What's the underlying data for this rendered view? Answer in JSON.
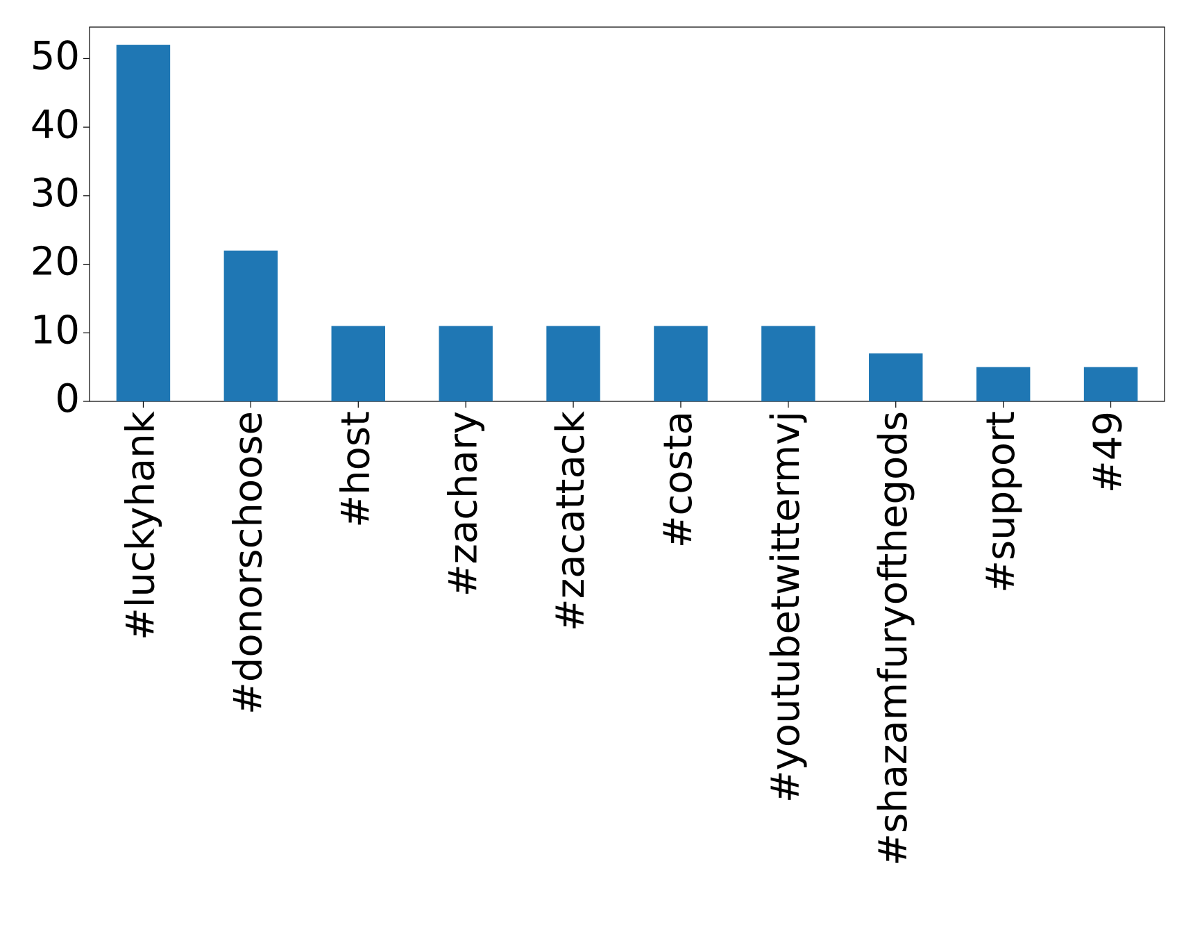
{
  "chart_data": {
    "type": "bar",
    "categories": [
      "#luckyhank",
      "#donorschoose",
      "#host",
      "#zachary",
      "#zacattack",
      "#costa",
      "#youtubetwittermvj",
      "#shazamfuryofthegods",
      "#support",
      "#49"
    ],
    "values": [
      52,
      22,
      11,
      11,
      11,
      11,
      11,
      7,
      5,
      5
    ],
    "color": "#1f77b4",
    "ylim": [
      0,
      54.6
    ],
    "yticks": [
      0,
      10,
      20,
      30,
      40,
      50
    ],
    "grid": false
  }
}
